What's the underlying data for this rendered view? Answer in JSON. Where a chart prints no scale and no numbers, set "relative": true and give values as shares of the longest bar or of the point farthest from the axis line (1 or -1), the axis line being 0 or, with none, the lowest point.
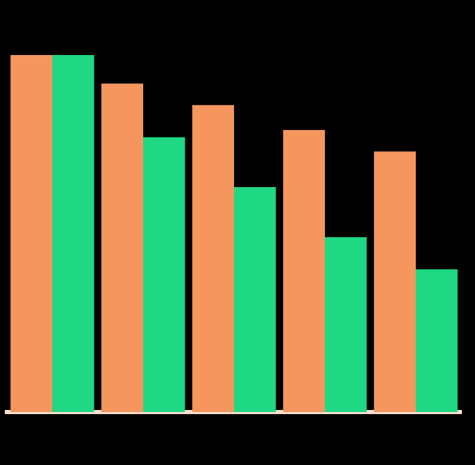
{
  "chart_data": {
    "type": "bar",
    "relative": true,
    "categories": [
      null,
      null,
      null,
      null,
      null
    ],
    "series": [
      {
        "color": "#f4965e",
        "values": [
          1,
          0.92,
          0.86,
          0.79,
          0.73
        ]
      },
      {
        "color": "#1ed884",
        "values": [
          1,
          0.77,
          0.63,
          0.49,
          0.4
        ]
      }
    ]
  }
}
